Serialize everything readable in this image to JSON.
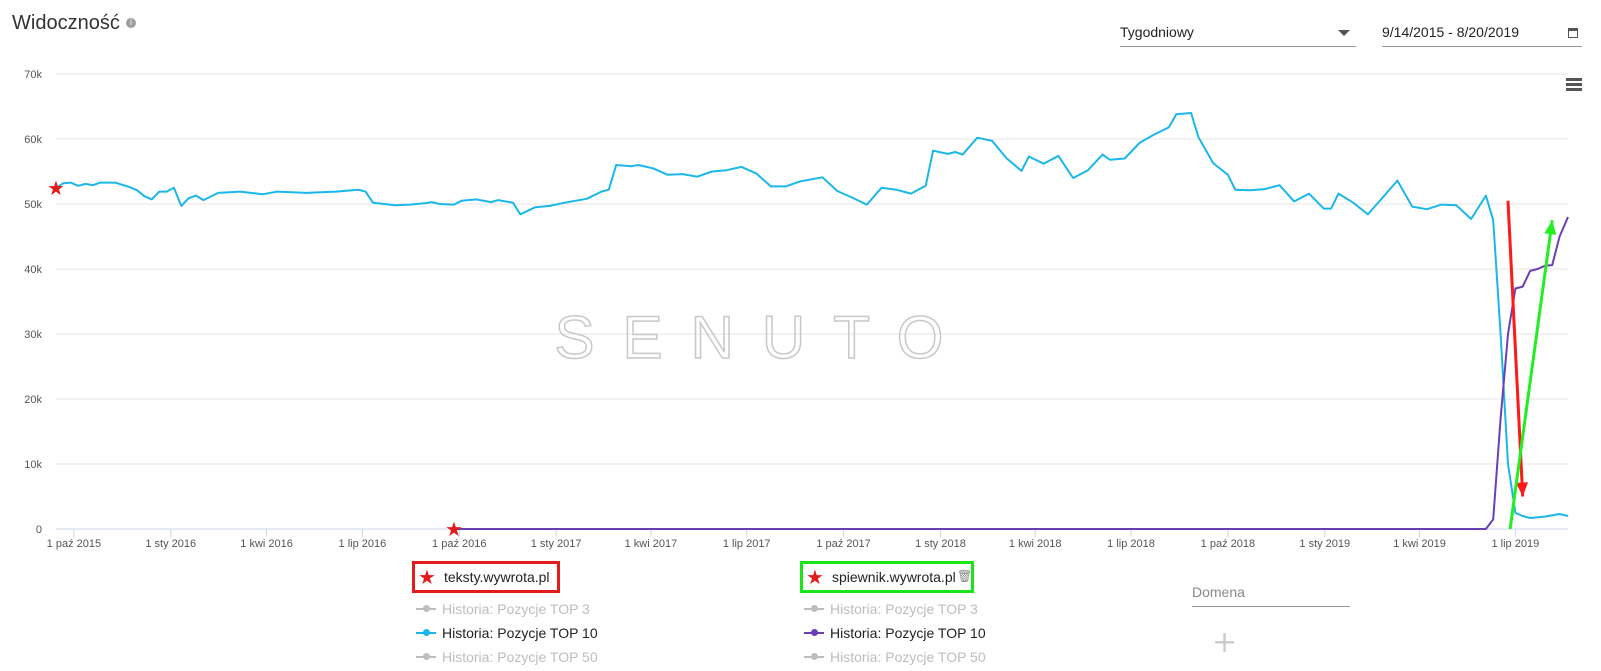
{
  "header": {
    "title": "Widoczność",
    "period_select": "Tygodniowy",
    "date_range": "9/14/2015 - 8/20/2019"
  },
  "colors": {
    "series_teksty": "#1ab7ea",
    "series_spiewnik": "#6a3fb5",
    "legend_box_teksty": "#e41b1b",
    "legend_box_spiewnik": "#19e619",
    "arrow_down": "#ff1a1a",
    "arrow_up": "#22ee22",
    "grid": "#e6e6e6",
    "muted": "#bdbdbd"
  },
  "legend": {
    "groups": [
      {
        "domain": "teksty.wywrota.pl",
        "items": [
          {
            "label": "Historia: Pozycje TOP 3",
            "active": false
          },
          {
            "label": "Historia: Pozycje TOP 10",
            "active": true
          },
          {
            "label": "Historia: Pozycje TOP 50",
            "active": false
          }
        ]
      },
      {
        "domain": "spiewnik.wywrota.pl",
        "items": [
          {
            "label": "Historia: Pozycje TOP 3",
            "active": false
          },
          {
            "label": "Historia: Pozycje TOP 10",
            "active": true
          },
          {
            "label": "Historia: Pozycje TOP 50",
            "active": false
          }
        ]
      }
    ],
    "domain_input_placeholder": "Domena"
  },
  "chart_data": {
    "type": "line",
    "ylim": [
      0,
      70000
    ],
    "y_ticks": [
      "0",
      "10k",
      "20k",
      "30k",
      "40k",
      "50k",
      "60k",
      "70k"
    ],
    "y_tick_values": [
      0,
      10000,
      20000,
      30000,
      40000,
      50000,
      60000,
      70000
    ],
    "x_ticks": [
      "1 paź 2015",
      "1 sty 2016",
      "1 kwi 2016",
      "1 lip 2016",
      "1 paź 2016",
      "1 sty 2017",
      "1 kwi 2017",
      "1 lip 2017",
      "1 paź 2017",
      "1 sty 2018",
      "1 kwi 2018",
      "1 lip 2018",
      "1 paź 2018",
      "1 sty 2019",
      "1 kwi 2019",
      "1 lip 2019"
    ],
    "x_tick_dates": [
      "2015-10-01",
      "2016-01-01",
      "2016-04-01",
      "2016-07-01",
      "2016-10-01",
      "2017-01-01",
      "2017-04-01",
      "2017-07-01",
      "2017-10-01",
      "2018-01-01",
      "2018-04-01",
      "2018-07-01",
      "2018-10-01",
      "2019-01-01",
      "2019-04-01",
      "2019-07-01"
    ],
    "xlim": [
      "2015-09-14",
      "2019-08-20"
    ],
    "grid": true,
    "watermark": "SENUTO",
    "series": [
      {
        "name": "teksty.wywrota.pl",
        "color": "#1ab7ea",
        "points": [
          [
            "2015-09-14",
            52500
          ],
          [
            "2015-09-21",
            53200
          ],
          [
            "2015-09-28",
            53300
          ],
          [
            "2015-10-05",
            52800
          ],
          [
            "2015-10-12",
            53100
          ],
          [
            "2015-10-19",
            52900
          ],
          [
            "2015-10-26",
            53300
          ],
          [
            "2015-11-09",
            53300
          ],
          [
            "2015-11-23",
            52600
          ],
          [
            "2015-11-30",
            52100
          ],
          [
            "2015-12-07",
            51200
          ],
          [
            "2015-12-14",
            50700
          ],
          [
            "2015-12-21",
            51900
          ],
          [
            "2015-12-28",
            51900
          ],
          [
            "2016-01-04",
            52500
          ],
          [
            "2016-01-11",
            49700
          ],
          [
            "2016-01-18",
            50900
          ],
          [
            "2016-01-25",
            51300
          ],
          [
            "2016-02-01",
            50600
          ],
          [
            "2016-02-15",
            51700
          ],
          [
            "2016-03-07",
            51900
          ],
          [
            "2016-03-28",
            51500
          ],
          [
            "2016-04-11",
            51900
          ],
          [
            "2016-05-09",
            51700
          ],
          [
            "2016-06-06",
            51900
          ],
          [
            "2016-06-27",
            52200
          ],
          [
            "2016-07-04",
            51900
          ],
          [
            "2016-07-11",
            50200
          ],
          [
            "2016-08-01",
            49800
          ],
          [
            "2016-08-15",
            49900
          ],
          [
            "2016-08-29",
            50100
          ],
          [
            "2016-09-05",
            50300
          ],
          [
            "2016-09-12",
            50000
          ],
          [
            "2016-09-26",
            49900
          ],
          [
            "2016-10-03",
            50500
          ],
          [
            "2016-10-17",
            50700
          ],
          [
            "2016-10-31",
            50300
          ],
          [
            "2016-11-07",
            50600
          ],
          [
            "2016-11-21",
            50200
          ],
          [
            "2016-11-28",
            48400
          ],
          [
            "2016-12-12",
            49500
          ],
          [
            "2016-12-26",
            49700
          ],
          [
            "2017-01-09",
            50200
          ],
          [
            "2017-01-30",
            50800
          ],
          [
            "2017-02-13",
            51900
          ],
          [
            "2017-02-20",
            52200
          ],
          [
            "2017-02-27",
            56000
          ],
          [
            "2017-03-13",
            55800
          ],
          [
            "2017-03-20",
            56000
          ],
          [
            "2017-04-03",
            55500
          ],
          [
            "2017-04-17",
            54500
          ],
          [
            "2017-05-01",
            54600
          ],
          [
            "2017-05-15",
            54200
          ],
          [
            "2017-05-29",
            55000
          ],
          [
            "2017-06-12",
            55200
          ],
          [
            "2017-06-26",
            55700
          ],
          [
            "2017-07-10",
            54700
          ],
          [
            "2017-07-24",
            52700
          ],
          [
            "2017-08-07",
            52700
          ],
          [
            "2017-08-21",
            53500
          ],
          [
            "2017-09-11",
            54100
          ],
          [
            "2017-09-25",
            52000
          ],
          [
            "2017-10-09",
            51000
          ],
          [
            "2017-10-23",
            49900
          ],
          [
            "2017-11-06",
            52500
          ],
          [
            "2017-11-20",
            52200
          ],
          [
            "2017-12-04",
            51600
          ],
          [
            "2017-12-18",
            52800
          ],
          [
            "2017-12-25",
            58200
          ],
          [
            "2018-01-08",
            57700
          ],
          [
            "2018-01-15",
            58000
          ],
          [
            "2018-01-22",
            57600
          ],
          [
            "2018-02-05",
            60200
          ],
          [
            "2018-02-19",
            59700
          ],
          [
            "2018-03-05",
            57000
          ],
          [
            "2018-03-19",
            55100
          ],
          [
            "2018-03-26",
            57300
          ],
          [
            "2018-04-09",
            56200
          ],
          [
            "2018-04-23",
            57400
          ],
          [
            "2018-05-07",
            54000
          ],
          [
            "2018-05-21",
            55200
          ],
          [
            "2018-06-04",
            57600
          ],
          [
            "2018-06-11",
            56800
          ],
          [
            "2018-06-25",
            57000
          ],
          [
            "2018-07-09",
            59400
          ],
          [
            "2018-07-23",
            60700
          ],
          [
            "2018-08-06",
            61800
          ],
          [
            "2018-08-13",
            63800
          ],
          [
            "2018-08-27",
            64000
          ],
          [
            "2018-09-03",
            60300
          ],
          [
            "2018-09-17",
            56300
          ],
          [
            "2018-10-01",
            54500
          ],
          [
            "2018-10-08",
            52200
          ],
          [
            "2018-10-22",
            52100
          ],
          [
            "2018-11-05",
            52300
          ],
          [
            "2018-11-19",
            52900
          ],
          [
            "2018-12-03",
            50400
          ],
          [
            "2018-12-17",
            51600
          ],
          [
            "2018-12-31",
            49300
          ],
          [
            "2019-01-07",
            49300
          ],
          [
            "2019-01-14",
            51600
          ],
          [
            "2019-01-28",
            50200
          ],
          [
            "2019-02-11",
            48400
          ],
          [
            "2019-02-25",
            51000
          ],
          [
            "2019-03-11",
            53600
          ],
          [
            "2019-03-25",
            49600
          ],
          [
            "2019-04-08",
            49200
          ],
          [
            "2019-04-22",
            49900
          ],
          [
            "2019-05-06",
            49800
          ],
          [
            "2019-05-20",
            47700
          ],
          [
            "2019-06-03",
            51300
          ],
          [
            "2019-06-10",
            47500
          ],
          [
            "2019-06-17",
            30000
          ],
          [
            "2019-06-24",
            10000
          ],
          [
            "2019-07-01",
            2500
          ],
          [
            "2019-07-08",
            2000
          ],
          [
            "2019-07-15",
            1700
          ],
          [
            "2019-07-29",
            1900
          ],
          [
            "2019-08-12",
            2300
          ],
          [
            "2019-08-20",
            2000
          ]
        ]
      },
      {
        "name": "spiewnik.wywrota.pl",
        "color": "#6a3fb5",
        "points": [
          [
            "2016-09-26",
            0
          ],
          [
            "2019-06-03",
            0
          ],
          [
            "2019-06-10",
            1500
          ],
          [
            "2019-06-17",
            17000
          ],
          [
            "2019-06-24",
            30000
          ],
          [
            "2019-07-01",
            37000
          ],
          [
            "2019-07-08",
            37300
          ],
          [
            "2019-07-15",
            39700
          ],
          [
            "2019-07-22",
            40000
          ],
          [
            "2019-07-29",
            40500
          ],
          [
            "2019-08-05",
            40600
          ],
          [
            "2019-08-12",
            45000
          ],
          [
            "2019-08-20",
            48000
          ]
        ]
      }
    ],
    "annotations": [
      {
        "type": "arrow",
        "color": "#ff1a1a",
        "from": [
          "2019-06-24",
          50500
        ],
        "to": [
          "2019-07-08",
          5000
        ]
      },
      {
        "type": "arrow",
        "color": "#22ee22",
        "from": [
          "2019-06-26",
          0
        ],
        "to": [
          "2019-08-05",
          47500
        ]
      },
      {
        "type": "star",
        "color": "#e41b1b",
        "at": [
          "2015-09-14",
          52500
        ]
      },
      {
        "type": "star",
        "color": "#e41b1b",
        "at": [
          "2016-09-26",
          0
        ]
      }
    ]
  }
}
